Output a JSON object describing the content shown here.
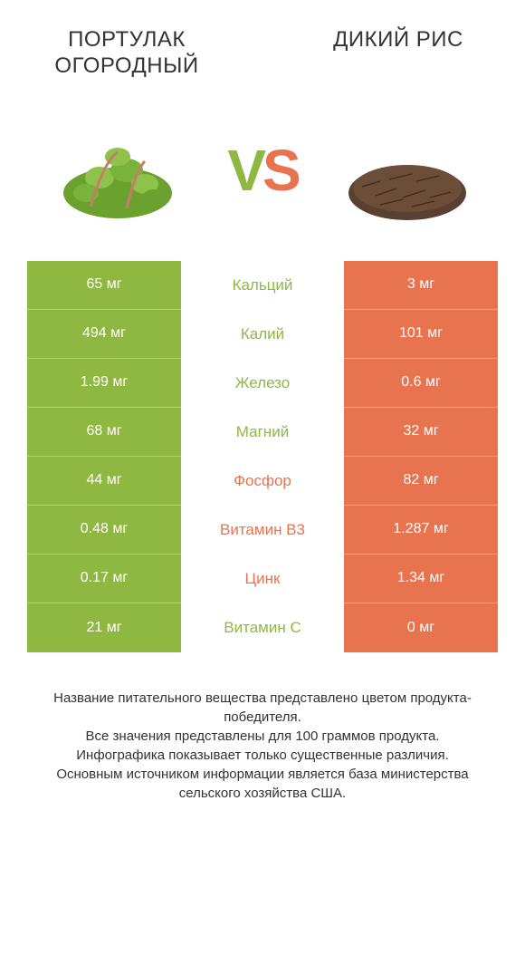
{
  "colors": {
    "left": "#8fb843",
    "right": "#e8734f",
    "text": "#333333"
  },
  "header": {
    "left_title": "ПОРТУЛАК ОГОРОДНЫЙ",
    "right_title": "ДИКИЙ РИС"
  },
  "vs": {
    "v": "V",
    "s": "S"
  },
  "rows": [
    {
      "left": "65 мг",
      "label": "Кальций",
      "right": "3 мг",
      "winner": "left"
    },
    {
      "left": "494 мг",
      "label": "Калий",
      "right": "101 мг",
      "winner": "left"
    },
    {
      "left": "1.99 мг",
      "label": "Железо",
      "right": "0.6 мг",
      "winner": "left"
    },
    {
      "left": "68 мг",
      "label": "Магний",
      "right": "32 мг",
      "winner": "left"
    },
    {
      "left": "44 мг",
      "label": "Фосфор",
      "right": "82 мг",
      "winner": "right"
    },
    {
      "left": "0.48 мг",
      "label": "Витамин B3",
      "right": "1.287 мг",
      "winner": "right"
    },
    {
      "left": "0.17 мг",
      "label": "Цинк",
      "right": "1.34 мг",
      "winner": "right"
    },
    {
      "left": "21 мг",
      "label": "Витамин C",
      "right": "0 мг",
      "winner": "left"
    }
  ],
  "footer": {
    "line1": "Название питательного вещества представлено цветом продукта-победителя.",
    "line2": "Все значения представлены для 100 граммов продукта.",
    "line3": "Инфографика показывает только существенные различия.",
    "line4": "Основным источником информации является база министерства сельского хозяйства США."
  }
}
